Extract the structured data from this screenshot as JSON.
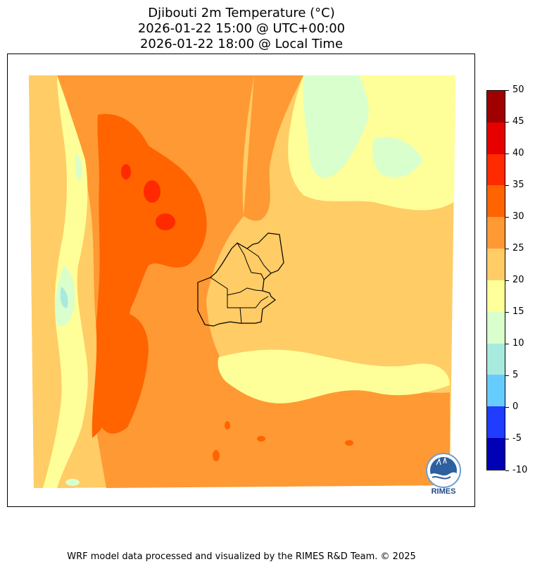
{
  "title": {
    "line1": "Djibouti 2m Temperature (°C)",
    "line2": "2026-01-22 15:00 @ UTC+00:00",
    "line3": "2026-01-22 18:00 @ Local Time"
  },
  "colorbar": {
    "ticks": [
      "50",
      "45",
      "40",
      "35",
      "30",
      "25",
      "20",
      "15",
      "10",
      "5",
      "0",
      "-5",
      "-10"
    ],
    "colors": [
      "#a00000",
      "#e60000",
      "#ff2a00",
      "#ff6400",
      "#ff9933",
      "#ffcc66",
      "#ffff99",
      "#d9ffcc",
      "#a8eadd",
      "#66ccff",
      "#1f3cff",
      "#0000b4"
    ]
  },
  "map": {
    "region": "Djibouti",
    "colors": {
      "orange_dark": "#ff6400",
      "orange": "#ff9933",
      "light_orange": "#ffcc66",
      "yellow": "#ffff99",
      "pale_green": "#d9ffcc",
      "teal": "#a8eadd",
      "red": "#ff2a00"
    }
  },
  "logo": {
    "text": "RIMES",
    "icon": "rimes-logo-icon"
  },
  "footer": "WRF model data processed and visualized by the RIMES R&D Team. © 2025"
}
